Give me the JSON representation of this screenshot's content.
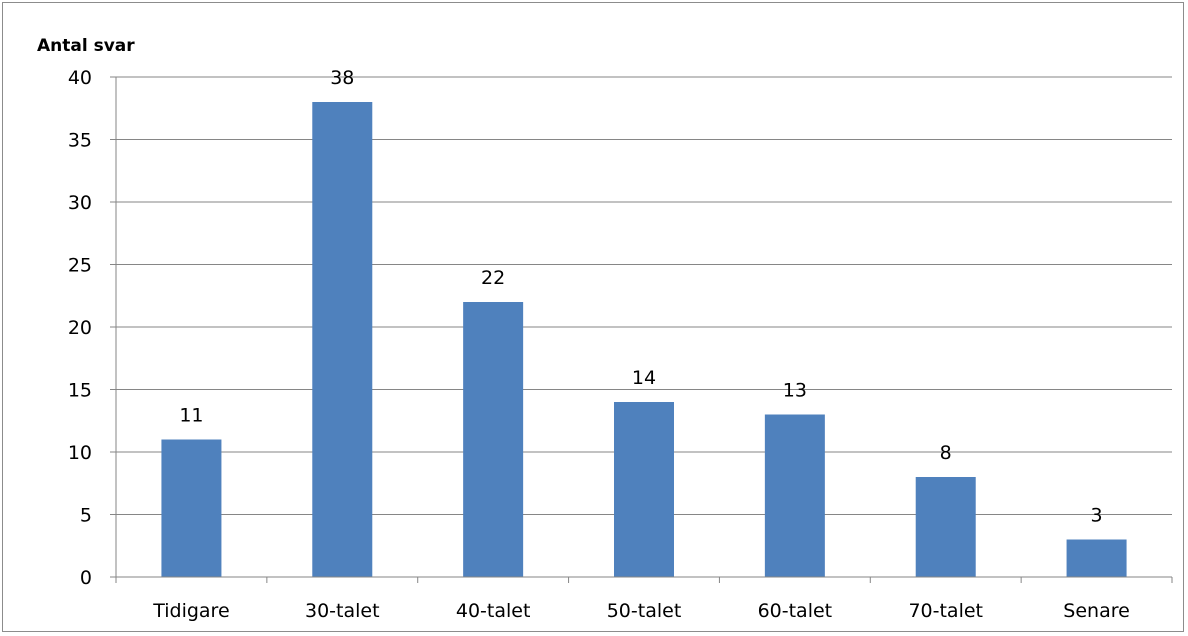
{
  "chart_data": {
    "type": "bar",
    "title": "",
    "xlabel": "",
    "ylabel": "Antal svar",
    "categories": [
      "Tidigare",
      "30-talet",
      "40-talet",
      "50-talet",
      "60-talet",
      "70-talet",
      "Senare"
    ],
    "values": [
      11,
      38,
      22,
      14,
      13,
      8,
      3
    ],
    "ylim": [
      0,
      40
    ],
    "yticks": [
      0,
      5,
      10,
      15,
      20,
      25,
      30,
      35,
      40
    ],
    "grid": true,
    "legend": "none",
    "bar_color": "#4f81bd",
    "grid_color": "#868686"
  }
}
